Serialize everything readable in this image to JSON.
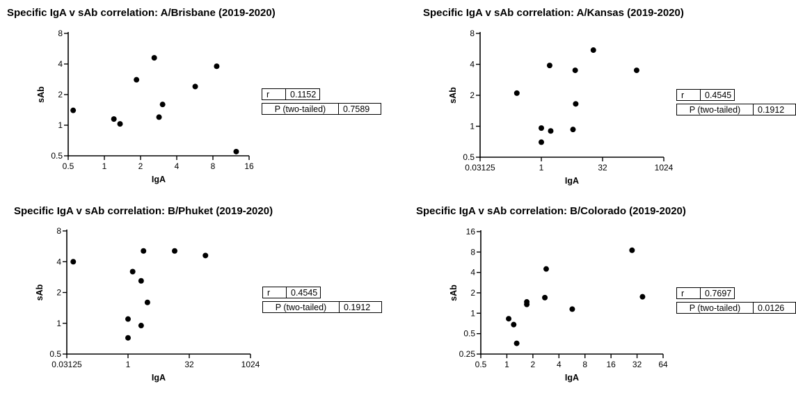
{
  "chart_data": [
    {
      "type": "scatter",
      "title": "Specific IgA v sAb correlation: A/Brisbane (2019-2020)",
      "xlabel": "IgA",
      "ylabel": "sAb",
      "x_scale": "log2",
      "y_scale": "log2",
      "xlim": [
        0.5,
        16
      ],
      "ylim": [
        0.5,
        8
      ],
      "x_ticks": [
        "0.5",
        "1",
        "2",
        "4",
        "8",
        "16"
      ],
      "y_ticks": [
        "0.5",
        "1",
        "2",
        "4",
        "8"
      ],
      "points": [
        {
          "x": 0.55,
          "y": 1.4
        },
        {
          "x": 1.2,
          "y": 1.15
        },
        {
          "x": 1.35,
          "y": 1.03
        },
        {
          "x": 1.85,
          "y": 2.8
        },
        {
          "x": 2.6,
          "y": 4.6
        },
        {
          "x": 2.85,
          "y": 1.2
        },
        {
          "x": 3.05,
          "y": 1.6
        },
        {
          "x": 5.7,
          "y": 2.4
        },
        {
          "x": 8.6,
          "y": 3.8
        },
        {
          "x": 12.5,
          "y": 0.55
        }
      ],
      "stats": {
        "r_label": "r",
        "r": "0.1152",
        "p_label": "P (two-tailed)",
        "p": "0.7589"
      }
    },
    {
      "type": "scatter",
      "title": "Specific IgA v sAb correlation: A/Kansas (2019-2020)",
      "xlabel": "IgA",
      "ylabel": "sAb",
      "x_scale": "log2",
      "y_scale": "log2",
      "xlim": [
        0.03125,
        1024
      ],
      "ylim": [
        0.5,
        8
      ],
      "x_ticks": [
        "0.03125",
        "1",
        "32",
        "1024"
      ],
      "y_ticks": [
        "0.5",
        "1",
        "2",
        "4",
        "8"
      ],
      "points": [
        {
          "x": 0.25,
          "y": 2.1
        },
        {
          "x": 1.0,
          "y": 0.96
        },
        {
          "x": 1.0,
          "y": 0.7
        },
        {
          "x": 1.7,
          "y": 0.9
        },
        {
          "x": 1.6,
          "y": 3.9
        },
        {
          "x": 6.0,
          "y": 0.93
        },
        {
          "x": 6.8,
          "y": 3.5
        },
        {
          "x": 7.0,
          "y": 1.65
        },
        {
          "x": 19.0,
          "y": 5.5
        },
        {
          "x": 220.0,
          "y": 3.5
        }
      ],
      "stats": {
        "r_label": "r",
        "r": "0.4545",
        "p_label": "P (two-tailed)",
        "p": "0.1912"
      }
    },
    {
      "type": "scatter",
      "title": "Specific IgA v sAb correlation: B/Phuket (2019-2020)",
      "xlabel": "IgA",
      "ylabel": "sAb",
      "x_scale": "log2",
      "y_scale": "log2",
      "xlim": [
        0.03125,
        1024
      ],
      "ylim": [
        0.5,
        8
      ],
      "x_ticks": [
        "0.03125",
        "1",
        "32",
        "1024"
      ],
      "y_ticks": [
        "0.5",
        "1",
        "2",
        "4",
        "8"
      ],
      "points": [
        {
          "x": 0.045,
          "y": 4.0
        },
        {
          "x": 1.0,
          "y": 1.1
        },
        {
          "x": 1.0,
          "y": 0.72
        },
        {
          "x": 1.3,
          "y": 3.2
        },
        {
          "x": 2.1,
          "y": 2.6
        },
        {
          "x": 2.1,
          "y": 0.95
        },
        {
          "x": 2.4,
          "y": 5.1
        },
        {
          "x": 3.0,
          "y": 1.6
        },
        {
          "x": 14.0,
          "y": 5.1
        },
        {
          "x": 80.0,
          "y": 4.6
        }
      ],
      "stats": {
        "r_label": "r",
        "r": "0.4545",
        "p_label": "P (two-tailed)",
        "p": "0.1912"
      }
    },
    {
      "type": "scatter",
      "title": "Specific IgA v sAb correlation: B/Colorado  (2019-2020)",
      "xlabel": "IgA",
      "ylabel": "sAb",
      "x_scale": "log2",
      "y_scale": "log2",
      "xlim": [
        0.5,
        64
      ],
      "ylim": [
        0.25,
        16
      ],
      "x_ticks": [
        "0.5",
        "1",
        "2",
        "4",
        "8",
        "16",
        "32",
        "64"
      ],
      "y_ticks": [
        "0.25",
        "0.5",
        "1",
        "2",
        "4",
        "8",
        "16"
      ],
      "points": [
        {
          "x": 1.05,
          "y": 0.83
        },
        {
          "x": 1.2,
          "y": 0.68
        },
        {
          "x": 1.3,
          "y": 0.36
        },
        {
          "x": 1.7,
          "y": 1.47
        },
        {
          "x": 1.7,
          "y": 1.35
        },
        {
          "x": 2.75,
          "y": 1.7
        },
        {
          "x": 2.85,
          "y": 4.5
        },
        {
          "x": 5.7,
          "y": 1.15
        },
        {
          "x": 28.0,
          "y": 8.5
        },
        {
          "x": 37.0,
          "y": 1.75
        }
      ],
      "stats": {
        "r_label": "r",
        "r": "0.7697",
        "p_label": "P (two-tailed)",
        "p": "0.0126"
      }
    }
  ]
}
